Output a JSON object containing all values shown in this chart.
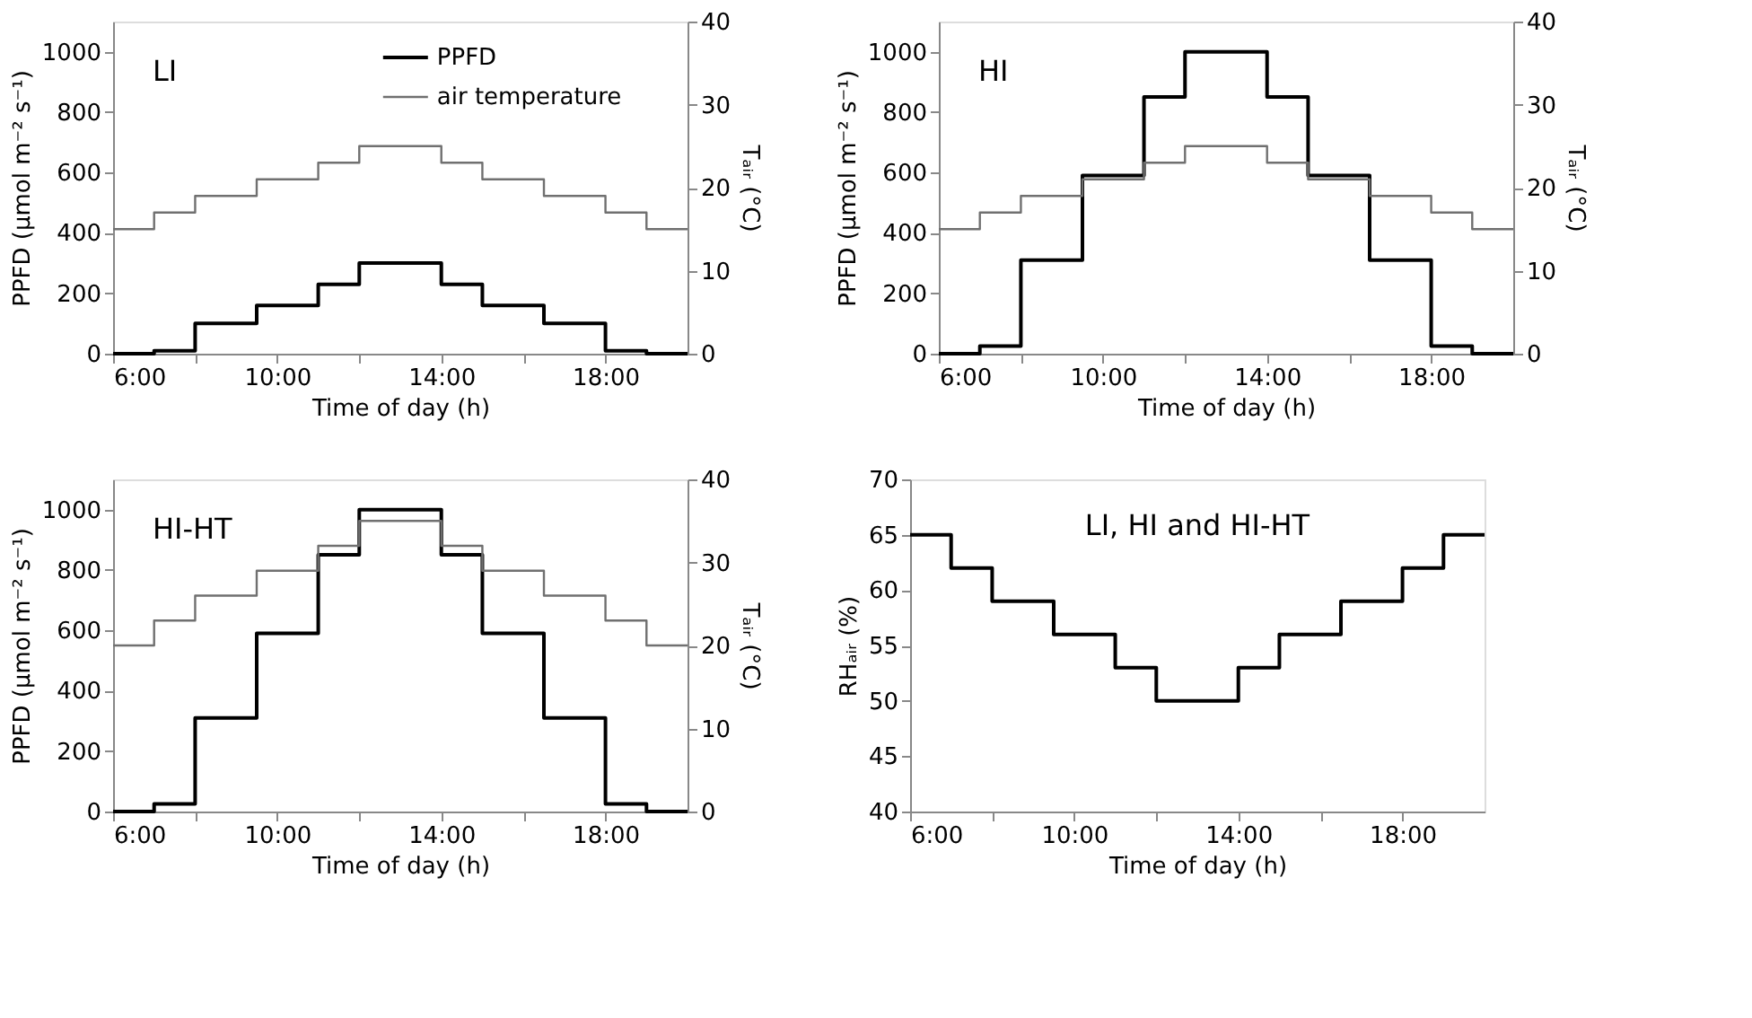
{
  "chart_data": [
    {
      "type": "step",
      "annotations": [
        "LI"
      ],
      "xlabel": "Time of day (h)",
      "ylabel": "PPFD (µmol m⁻² s⁻¹)",
      "y2label": "Tₐᵢᵣ (°C)",
      "x": [
        6,
        7,
        8,
        9.5,
        11,
        12,
        14,
        15,
        16.5,
        18,
        19,
        20
      ],
      "series": [
        {
          "name": "PPFD",
          "color": "#000000",
          "values": [
            0,
            10,
            100,
            160,
            230,
            300,
            230,
            160,
            100,
            10,
            0,
            0
          ]
        },
        {
          "name": "air temperature",
          "color": "#707070",
          "axis": "y2",
          "values": [
            15,
            17,
            19,
            21,
            23,
            25,
            23,
            21,
            19,
            17,
            15,
            15
          ]
        }
      ],
      "xlim": [
        6,
        20
      ],
      "xticks": [
        {
          "value": 6,
          "label": "6:00"
        },
        {
          "value": 8,
          "label": null
        },
        {
          "value": 10,
          "label": "10:00"
        },
        {
          "value": 12,
          "label": null
        },
        {
          "value": 14,
          "label": "14:00"
        },
        {
          "value": 16,
          "label": null
        },
        {
          "value": 18,
          "label": "18:00"
        }
      ],
      "ylim": [
        0,
        1100
      ],
      "yticks": [
        0,
        200,
        400,
        600,
        800,
        1000
      ],
      "y2lim": [
        0,
        40
      ],
      "y2ticks": [
        0,
        10,
        20,
        30,
        40
      ],
      "legend": "top right",
      "grid": false,
      "line_style": "solid"
    },
    {
      "type": "step",
      "annotations": [
        "HI"
      ],
      "xlabel": "Time of day (h)",
      "ylabel": "PPFD (µmol m⁻² s⁻¹)",
      "y2label": "Tₐᵢᵣ (°C)",
      "x": [
        6,
        7,
        8,
        9.5,
        11,
        12,
        14,
        15,
        16.5,
        18,
        19,
        20
      ],
      "series": [
        {
          "color": "#000000",
          "values": [
            0,
            25,
            310,
            590,
            850,
            1000,
            850,
            590,
            310,
            25,
            0,
            0
          ]
        },
        {
          "color": "#707070",
          "axis": "y2",
          "values": [
            15,
            17,
            19,
            21,
            23,
            25,
            23,
            21,
            19,
            17,
            15,
            15
          ]
        }
      ],
      "xlim": [
        6,
        20
      ],
      "xticks": [
        {
          "value": 6,
          "label": "6:00"
        },
        {
          "value": 8,
          "label": null
        },
        {
          "value": 10,
          "label": "10:00"
        },
        {
          "value": 12,
          "label": null
        },
        {
          "value": 14,
          "label": "14:00"
        },
        {
          "value": 16,
          "label": null
        },
        {
          "value": 18,
          "label": "18:00"
        }
      ],
      "ylim": [
        0,
        1100
      ],
      "yticks": [
        0,
        200,
        400,
        600,
        800,
        1000
      ],
      "y2lim": [
        0,
        40
      ],
      "y2ticks": [
        0,
        10,
        20,
        30,
        40
      ],
      "grid": false,
      "line_style": "solid"
    },
    {
      "type": "step",
      "annotations": [
        "HI-HT"
      ],
      "xlabel": "Time of day (h)",
      "ylabel": "PPFD (µmol m⁻² s⁻¹)",
      "y2label": "Tₐᵢᵣ (°C)",
      "x": [
        6,
        7,
        8,
        9.5,
        11,
        12,
        14,
        15,
        16.5,
        18,
        19,
        20
      ],
      "series": [
        {
          "color": "#000000",
          "values": [
            0,
            25,
            310,
            590,
            850,
            1000,
            850,
            590,
            310,
            25,
            0,
            0
          ]
        },
        {
          "color": "#707070",
          "axis": "y2",
          "values": [
            20,
            23,
            26,
            29,
            32,
            35,
            32,
            29,
            26,
            23,
            20,
            20
          ]
        }
      ],
      "xlim": [
        6,
        20
      ],
      "xticks": [
        {
          "value": 6,
          "label": "6:00"
        },
        {
          "value": 8,
          "label": null
        },
        {
          "value": 10,
          "label": "10:00"
        },
        {
          "value": 12,
          "label": null
        },
        {
          "value": 14,
          "label": "14:00"
        },
        {
          "value": 16,
          "label": null
        },
        {
          "value": 18,
          "label": "18:00"
        }
      ],
      "ylim": [
        0,
        1100
      ],
      "yticks": [
        0,
        200,
        400,
        600,
        800,
        1000
      ],
      "y2lim": [
        0,
        40
      ],
      "y2ticks": [
        0,
        10,
        20,
        30,
        40
      ],
      "grid": false,
      "line_style": "solid"
    },
    {
      "type": "step",
      "annotations": [
        "LI, HI and HI-HT"
      ],
      "xlabel": "Time of day (h)",
      "ylabel": "RHₐᵢᵣ (%)",
      "x": [
        6,
        7,
        8,
        9.5,
        11,
        12,
        14,
        15,
        16.5,
        18,
        19,
        20
      ],
      "series": [
        {
          "color": "#000000",
          "values": [
            65,
            62,
            59,
            56,
            53,
            50,
            53,
            56,
            59,
            62,
            65,
            65
          ]
        }
      ],
      "xlim": [
        6,
        20
      ],
      "xticks": [
        {
          "value": 6,
          "label": "6:00"
        },
        {
          "value": 8,
          "label": null
        },
        {
          "value": 10,
          "label": "10:00"
        },
        {
          "value": 12,
          "label": null
        },
        {
          "value": 14,
          "label": "14:00"
        },
        {
          "value": 16,
          "label": null
        },
        {
          "value": 18,
          "label": "18:00"
        }
      ],
      "ylim": [
        40,
        70
      ],
      "yticks": [
        40,
        45,
        50,
        55,
        60,
        65,
        70
      ],
      "grid": false,
      "line_style": "solid"
    }
  ]
}
